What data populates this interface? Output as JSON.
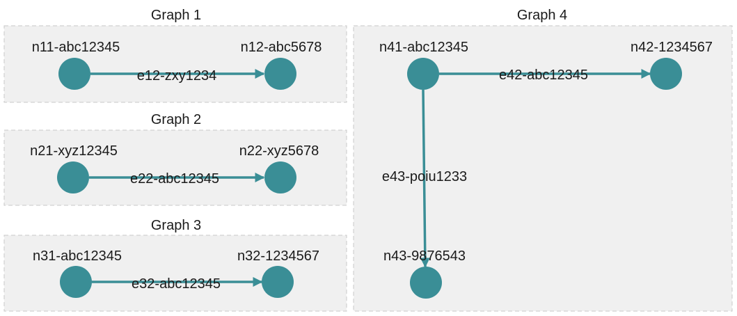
{
  "colors": {
    "node": "#3a8e96",
    "edge": "#3a8e96"
  },
  "groups": [
    {
      "title": "Graph 1",
      "nodes": [
        {
          "id": "n11",
          "label": "n11-abc12345"
        },
        {
          "id": "n12",
          "label": "n12-abc5678"
        }
      ],
      "edges": [
        {
          "from": "n11",
          "to": "n12",
          "label": "e12-zxy1234"
        }
      ]
    },
    {
      "title": "Graph 2",
      "nodes": [
        {
          "id": "n21",
          "label": "n21-xyz12345"
        },
        {
          "id": "n22",
          "label": "n22-xyz5678"
        }
      ],
      "edges": [
        {
          "from": "n21",
          "to": "n22",
          "label": "e22-abc12345"
        }
      ]
    },
    {
      "title": "Graph 3",
      "nodes": [
        {
          "id": "n31",
          "label": "n31-abc12345"
        },
        {
          "id": "n32",
          "label": "n32-1234567"
        }
      ],
      "edges": [
        {
          "from": "n31",
          "to": "n32",
          "label": "e32-abc12345"
        }
      ]
    },
    {
      "title": "Graph 4",
      "nodes": [
        {
          "id": "n41",
          "label": "n41-abc12345"
        },
        {
          "id": "n42",
          "label": "n42-1234567"
        },
        {
          "id": "n43",
          "label": "n43-9876543"
        }
      ],
      "edges": [
        {
          "from": "n41",
          "to": "n42",
          "label": "e42-abc12345"
        },
        {
          "from": "n41",
          "to": "n43",
          "label": "e43-poiu1233"
        }
      ]
    }
  ]
}
